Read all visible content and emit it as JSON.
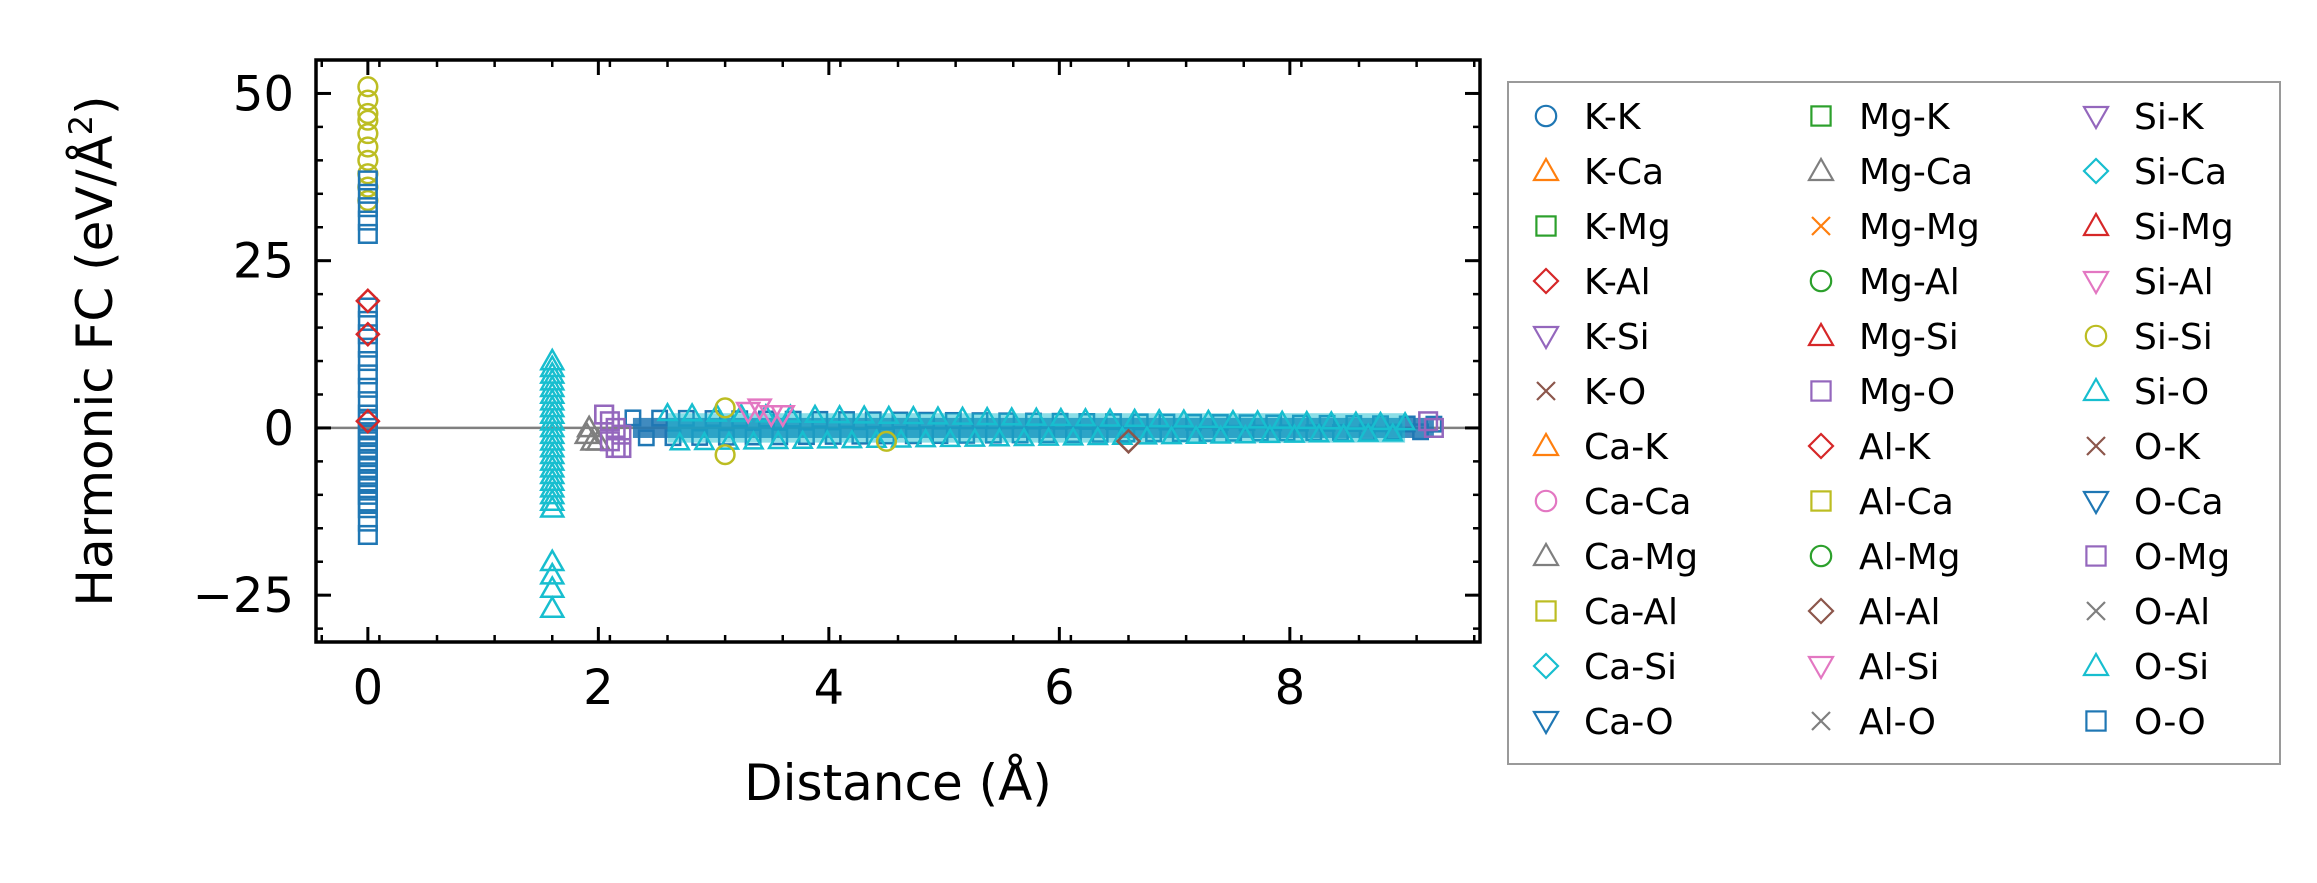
{
  "chart_data": {
    "type": "scatter",
    "xlabel": "Distance (Å)",
    "ylabel_main": "Harmonic FC (eV/Å",
    "ylabel_sup": "2",
    "ylabel_end": ")",
    "xlim": [
      -0.45,
      9.65
    ],
    "ylim": [
      -32,
      55
    ],
    "x_ticks": [
      0,
      2,
      4,
      6,
      8
    ],
    "y_ticks": [
      -25,
      0,
      25,
      50
    ],
    "x_tick_labels": [
      "0",
      "2",
      "4",
      "6",
      "8"
    ],
    "y_tick_labels": [
      "−25",
      "0",
      "25",
      "50"
    ],
    "grid": false,
    "legend": {
      "placement": "right-outside",
      "columns": 3
    },
    "series": [
      {
        "name": "K-K",
        "marker": "circle",
        "color": "#1f77b4"
      },
      {
        "name": "K-Ca",
        "marker": "triangle-up",
        "color": "#ff7f0e"
      },
      {
        "name": "K-Mg",
        "marker": "square",
        "color": "#2ca02c"
      },
      {
        "name": "K-Al",
        "marker": "diamond",
        "color": "#d62728"
      },
      {
        "name": "K-Si",
        "marker": "triangle-down",
        "color": "#9467bd"
      },
      {
        "name": "K-O",
        "marker": "x",
        "color": "#8c564b"
      },
      {
        "name": "Ca-K",
        "marker": "triangle-up",
        "color": "#ff7f0e"
      },
      {
        "name": "Ca-Ca",
        "marker": "circle",
        "color": "#e377c2"
      },
      {
        "name": "Ca-Mg",
        "marker": "triangle-up",
        "color": "#7f7f7f"
      },
      {
        "name": "Ca-Al",
        "marker": "square",
        "color": "#bcbd22"
      },
      {
        "name": "Ca-Si",
        "marker": "diamond",
        "color": "#17becf"
      },
      {
        "name": "Ca-O",
        "marker": "triangle-down",
        "color": "#1f77b4"
      },
      {
        "name": "Mg-K",
        "marker": "square",
        "color": "#2ca02c"
      },
      {
        "name": "Mg-Ca",
        "marker": "triangle-up",
        "color": "#7f7f7f"
      },
      {
        "name": "Mg-Mg",
        "marker": "x",
        "color": "#ff7f0e"
      },
      {
        "name": "Mg-Al",
        "marker": "circle",
        "color": "#2ca02c"
      },
      {
        "name": "Mg-Si",
        "marker": "triangle-up",
        "color": "#d62728"
      },
      {
        "name": "Mg-O",
        "marker": "square",
        "color": "#9467bd"
      },
      {
        "name": "Al-K",
        "marker": "diamond",
        "color": "#d62728"
      },
      {
        "name": "Al-Ca",
        "marker": "square",
        "color": "#bcbd22"
      },
      {
        "name": "Al-Mg",
        "marker": "circle",
        "color": "#2ca02c"
      },
      {
        "name": "Al-Al",
        "marker": "diamond",
        "color": "#8c564b"
      },
      {
        "name": "Al-Si",
        "marker": "triangle-down",
        "color": "#e377c2"
      },
      {
        "name": "Al-O",
        "marker": "x",
        "color": "#7f7f7f"
      },
      {
        "name": "Si-K",
        "marker": "triangle-down",
        "color": "#9467bd"
      },
      {
        "name": "Si-Ca",
        "marker": "diamond",
        "color": "#17becf"
      },
      {
        "name": "Si-Mg",
        "marker": "triangle-up",
        "color": "#d62728"
      },
      {
        "name": "Si-Al",
        "marker": "triangle-down",
        "color": "#e377c2"
      },
      {
        "name": "Si-Si",
        "marker": "circle",
        "color": "#bcbd22"
      },
      {
        "name": "Si-O",
        "marker": "triangle-up",
        "color": "#17becf"
      },
      {
        "name": "O-K",
        "marker": "x",
        "color": "#8c564b"
      },
      {
        "name": "O-Ca",
        "marker": "triangle-down",
        "color": "#1f77b4"
      },
      {
        "name": "O-Mg",
        "marker": "square",
        "color": "#9467bd"
      },
      {
        "name": "O-Al",
        "marker": "x",
        "color": "#7f7f7f"
      },
      {
        "name": "O-Si",
        "marker": "triangle-up",
        "color": "#17becf"
      },
      {
        "name": "O-O",
        "marker": "square",
        "color": "#1f77b4"
      }
    ],
    "clusters": [
      {
        "series": "Si-Si",
        "x": [
          0,
          0,
          0,
          0,
          0,
          0,
          0,
          0,
          0,
          0
        ],
        "y": [
          51,
          49,
          47,
          46,
          44,
          42,
          40,
          38,
          36,
          34
        ]
      },
      {
        "series": "O-O",
        "x": [
          0,
          0,
          0,
          0,
          0,
          0,
          0,
          0,
          0,
          0,
          0,
          0,
          0,
          0,
          0,
          0,
          0,
          0,
          0,
          0,
          0,
          0,
          0,
          0,
          0,
          0,
          0,
          0,
          0,
          0
        ],
        "y": [
          37,
          35,
          33,
          31,
          29,
          18,
          16,
          14,
          12,
          10,
          8,
          6,
          4,
          2,
          1,
          0,
          -1,
          -2,
          -3,
          -4,
          -5,
          -6,
          -7,
          -8,
          -9,
          -10,
          -11,
          -12,
          -14,
          -16
        ]
      },
      {
        "series": "K-Al",
        "x": [
          0,
          0,
          0
        ],
        "y": [
          19,
          14,
          1
        ]
      },
      {
        "series": "Si-O",
        "x": [
          1.6,
          1.6,
          1.6,
          1.6,
          1.6,
          1.6,
          1.6,
          1.6,
          1.6,
          1.6,
          1.6,
          1.6,
          1.6,
          1.6,
          1.6,
          1.6,
          1.6,
          1.6,
          1.6,
          1.6,
          1.6,
          1.6,
          1.6,
          1.6,
          1.6,
          1.6,
          1.6
        ],
        "y": [
          10,
          9,
          8,
          7,
          6,
          5,
          4,
          3,
          2,
          1,
          0,
          -1,
          -2,
          -3,
          -4,
          -5,
          -6,
          -7,
          -8,
          -9,
          -10,
          -11,
          -12,
          -20,
          -22,
          -24,
          -27
        ]
      },
      {
        "series": "Mg-Ca",
        "x": [
          1.9,
          1.95,
          2.0,
          1.92
        ],
        "y": [
          -1,
          -2,
          -2,
          0
        ]
      },
      {
        "series": "Mg-O",
        "x": [
          2.05,
          2.1,
          2.15,
          2.2,
          2.1,
          2.2,
          2.05,
          2.15
        ],
        "y": [
          2,
          1,
          0,
          -1,
          -2,
          -3,
          2,
          -3
        ]
      },
      {
        "series": "Si-Si",
        "x": [
          3.1,
          3.1,
          4.5
        ],
        "y": [
          3,
          -4,
          -2
        ]
      },
      {
        "series": "Al-Si",
        "x": [
          3.4,
          3.6
        ],
        "y": [
          3,
          2
        ]
      },
      {
        "series": "Si-Al",
        "x": [
          3.3,
          3.5
        ],
        "y": [
          2.5,
          2
        ]
      },
      {
        "series": "Al-Al",
        "x": [
          6.6
        ],
        "y": [
          -2
        ]
      },
      {
        "series": "O-Mg",
        "x": [
          9.25,
          9.2
        ],
        "y": [
          0,
          1
        ]
      }
    ],
    "bands": [
      {
        "series": "O-O",
        "x_start": 2.3,
        "x_end": 9.25,
        "y_top": 1.5,
        "y_bottom": -1.5
      },
      {
        "series": "Si-O",
        "x_start": 2.6,
        "x_end": 9.0,
        "y_top": 2.2,
        "y_bottom": -2.2
      }
    ],
    "reference_line": {
      "y": 0,
      "color": "#808080"
    }
  }
}
